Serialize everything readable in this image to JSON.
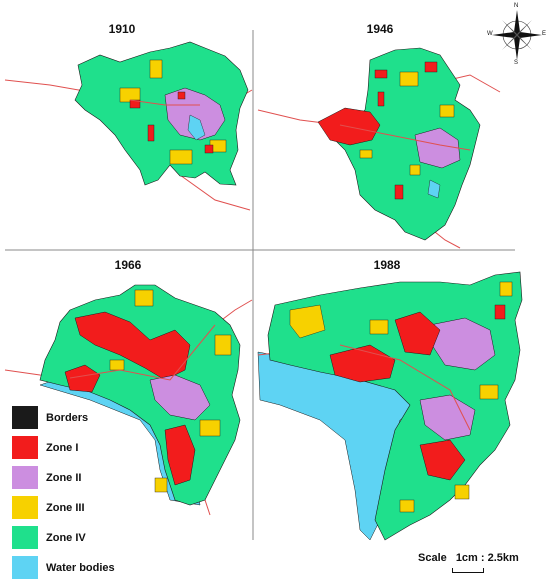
{
  "panels": [
    {
      "title": "1910"
    },
    {
      "title": "1946"
    },
    {
      "title": "1966"
    },
    {
      "title": "1988"
    }
  ],
  "legend": [
    {
      "label": "Borders",
      "color": "#1a1a1a"
    },
    {
      "label": "Zone I",
      "color": "#f21c1c"
    },
    {
      "label": "Zone II",
      "color": "#cc8ee0"
    },
    {
      "label": "Zone III",
      "color": "#f7d100"
    },
    {
      "label": "Zone IV",
      "color": "#1fe08c"
    },
    {
      "label": "Water bodies",
      "color": "#5ed3f3"
    }
  ],
  "scale": {
    "label": "Scale",
    "value": "1cm : 2.5km"
  },
  "compass": {
    "n": "N",
    "s": "S",
    "e": "E",
    "w": "W"
  },
  "colors": {
    "zone1": "#f21c1c",
    "zone2": "#cc8ee0",
    "zone3": "#f7d100",
    "zone4": "#1fe08c",
    "water": "#5ed3f3",
    "border": "#1a1a1a",
    "road": "#e0504f",
    "divider": "#888888"
  }
}
